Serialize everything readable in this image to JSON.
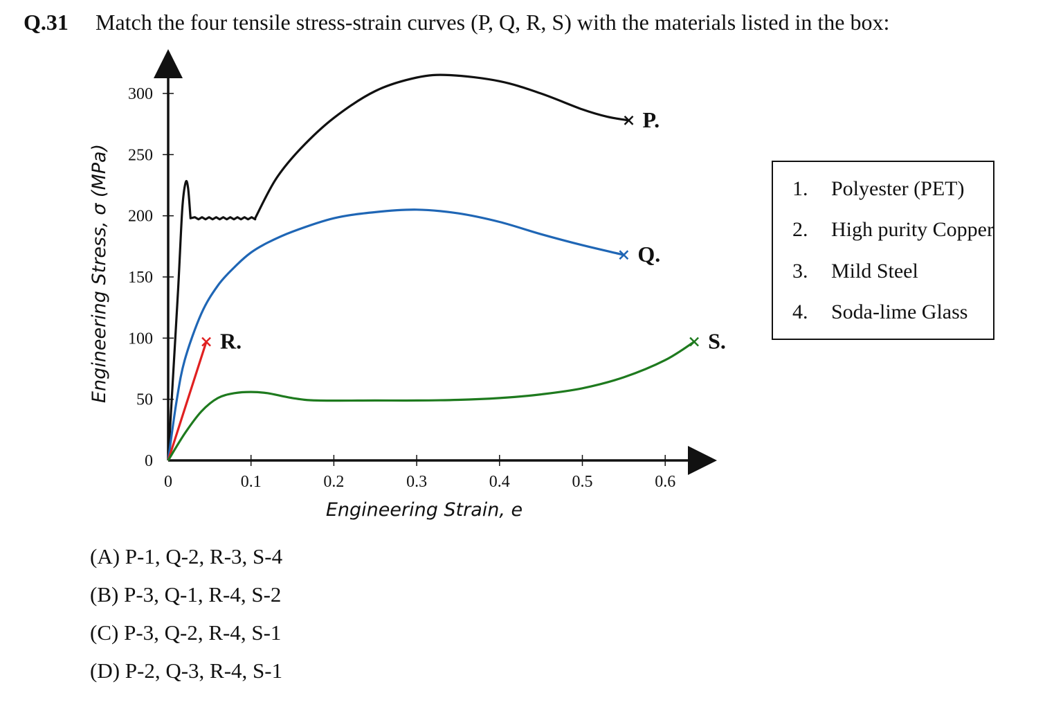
{
  "question": {
    "number": "Q.31",
    "text": "Match the four tensile stress-strain curves (P, Q, R, S) with the materials listed in the box:"
  },
  "materials": [
    {
      "num": "1.",
      "name": "Polyester (PET)"
    },
    {
      "num": "2.",
      "name": "High purity Copper"
    },
    {
      "num": "3.",
      "name": "Mild Steel"
    },
    {
      "num": "4.",
      "name": "Soda-lime Glass"
    }
  ],
  "options": [
    {
      "text": "(A) P-1, Q-2, R-3, S-4"
    },
    {
      "text": "(B) P-3, Q-1, R-4, S-2"
    },
    {
      "text": "(C) P-3, Q-2, R-4, S-1"
    },
    {
      "text": "(D) P-2, Q-3, R-4, S-1"
    }
  ],
  "chart_data": {
    "type": "line",
    "xlabel": "Engineering Strain, e",
    "ylabel": "Engineering Stress, σ  (MPa)",
    "xlim": [
      0,
      0.64
    ],
    "ylim": [
      0,
      300
    ],
    "xticks": [
      "0",
      "0.1",
      "0.2",
      "0.3",
      "0.4",
      "0.5",
      "0.6"
    ],
    "yticks": [
      "0",
      "50",
      "100",
      "150",
      "200",
      "250",
      "300"
    ],
    "grid": false,
    "series": [
      {
        "name": "P.",
        "color": "#111111",
        "points": [
          [
            0,
            0
          ],
          [
            0.006,
            70
          ],
          [
            0.012,
            140
          ],
          [
            0.017,
            205
          ],
          [
            0.021,
            227
          ],
          [
            0.024,
            223
          ],
          [
            0.027,
            198
          ],
          [
            0.045,
            198
          ],
          [
            0.07,
            198
          ],
          [
            0.09,
            198
          ],
          [
            0.1,
            198
          ],
          [
            0.105,
            198
          ],
          [
            0.13,
            230
          ],
          [
            0.16,
            255
          ],
          [
            0.2,
            280
          ],
          [
            0.25,
            302
          ],
          [
            0.3,
            313
          ],
          [
            0.34,
            315
          ],
          [
            0.4,
            310
          ],
          [
            0.45,
            300
          ],
          [
            0.5,
            287
          ],
          [
            0.53,
            281
          ],
          [
            0.556,
            278
          ]
        ],
        "serrated_range": [
          0.028,
          0.105
        ],
        "end_marker": "x"
      },
      {
        "name": "Q.",
        "color": "#1f66b5",
        "points": [
          [
            0,
            0
          ],
          [
            0.01,
            48
          ],
          [
            0.02,
            82
          ],
          [
            0.04,
            120
          ],
          [
            0.06,
            143
          ],
          [
            0.08,
            158
          ],
          [
            0.1,
            170
          ],
          [
            0.12,
            178
          ],
          [
            0.15,
            187
          ],
          [
            0.2,
            198
          ],
          [
            0.25,
            203
          ],
          [
            0.3,
            205
          ],
          [
            0.35,
            202
          ],
          [
            0.4,
            195
          ],
          [
            0.45,
            185
          ],
          [
            0.5,
            176
          ],
          [
            0.55,
            168
          ]
        ],
        "end_marker": "x"
      },
      {
        "name": "R.",
        "color": "#e02020",
        "points": [
          [
            0,
            0
          ],
          [
            0.046,
            97
          ]
        ],
        "end_marker": "x"
      },
      {
        "name": "S.",
        "color": "#1e7a1e",
        "points": [
          [
            0,
            0
          ],
          [
            0.02,
            22
          ],
          [
            0.04,
            40
          ],
          [
            0.06,
            51
          ],
          [
            0.08,
            55
          ],
          [
            0.1,
            56
          ],
          [
            0.12,
            55
          ],
          [
            0.15,
            51
          ],
          [
            0.18,
            49
          ],
          [
            0.25,
            49
          ],
          [
            0.3,
            49
          ],
          [
            0.35,
            49.5
          ],
          [
            0.4,
            51
          ],
          [
            0.45,
            54
          ],
          [
            0.5,
            59
          ],
          [
            0.55,
            68
          ],
          [
            0.6,
            82
          ],
          [
            0.635,
            97
          ]
        ],
        "end_marker": "x"
      }
    ]
  }
}
